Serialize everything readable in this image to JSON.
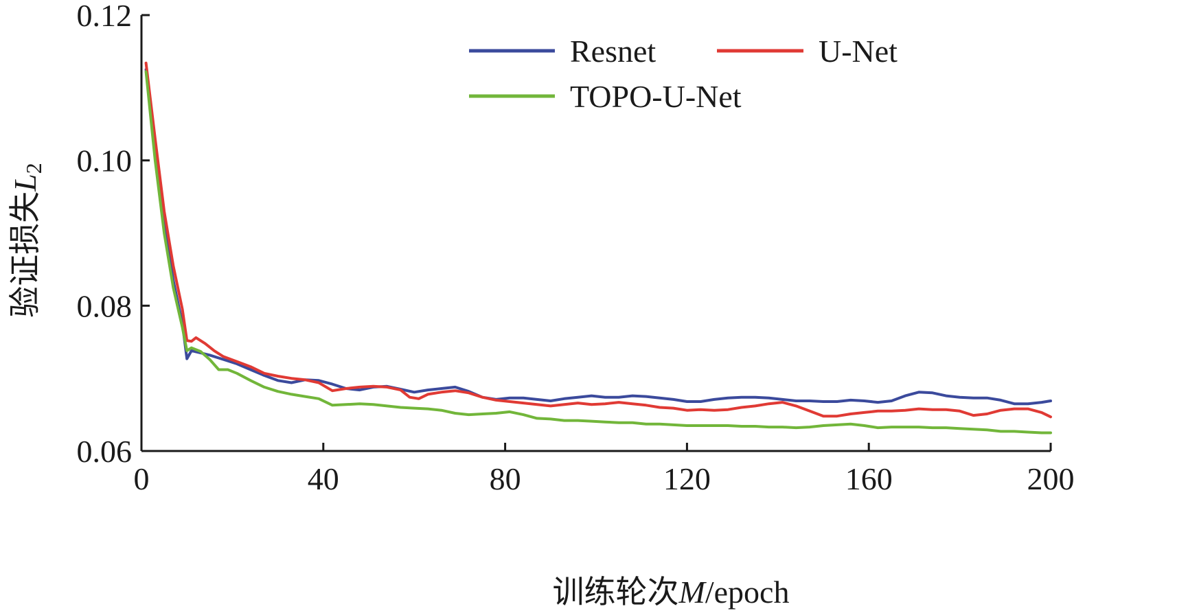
{
  "chart_data": {
    "type": "line",
    "title": "",
    "xlabel": {
      "prefix": "训练轮次",
      "var": "M",
      "suffix": "/epoch"
    },
    "ylabel": {
      "prefix": "验证损失",
      "var": "L",
      "sub": "2"
    },
    "xlim": [
      0,
      200
    ],
    "ylim": [
      0.06,
      0.12
    ],
    "xticks": [
      0,
      40,
      80,
      120,
      160,
      200
    ],
    "xtick_labels": [
      "0",
      "40",
      "80",
      "120",
      "160",
      "200"
    ],
    "yticks": [
      0.06,
      0.08,
      0.1,
      0.12
    ],
    "ytick_labels": [
      "0.06",
      "0.08",
      "0.10",
      "0.12"
    ],
    "grid": false,
    "legend_position": "top-right",
    "series": [
      {
        "name": "Resnet",
        "color": "#3b4a9c",
        "points": [
          [
            1,
            0.1125
          ],
          [
            3,
            0.101
          ],
          [
            5,
            0.091
          ],
          [
            7,
            0.0835
          ],
          [
            9,
            0.0775
          ],
          [
            10,
            0.0727
          ],
          [
            11,
            0.0738
          ],
          [
            13,
            0.0735
          ],
          [
            15,
            0.0732
          ],
          [
            18,
            0.0726
          ],
          [
            21,
            0.072
          ],
          [
            24,
            0.0712
          ],
          [
            27,
            0.0704
          ],
          [
            30,
            0.0697
          ],
          [
            33,
            0.0694
          ],
          [
            36,
            0.0698
          ],
          [
            39,
            0.0697
          ],
          [
            42,
            0.0692
          ],
          [
            45,
            0.0686
          ],
          [
            48,
            0.0684
          ],
          [
            51,
            0.0688
          ],
          [
            54,
            0.0689
          ],
          [
            57,
            0.0685
          ],
          [
            60,
            0.0681
          ],
          [
            63,
            0.0684
          ],
          [
            66,
            0.0686
          ],
          [
            69,
            0.0688
          ],
          [
            72,
            0.0682
          ],
          [
            75,
            0.0674
          ],
          [
            78,
            0.0671
          ],
          [
            81,
            0.0673
          ],
          [
            84,
            0.0673
          ],
          [
            87,
            0.0671
          ],
          [
            90,
            0.0669
          ],
          [
            93,
            0.0672
          ],
          [
            96,
            0.0674
          ],
          [
            99,
            0.0676
          ],
          [
            102,
            0.0674
          ],
          [
            105,
            0.0674
          ],
          [
            108,
            0.0676
          ],
          [
            111,
            0.0675
          ],
          [
            114,
            0.0673
          ],
          [
            117,
            0.0671
          ],
          [
            120,
            0.0668
          ],
          [
            123,
            0.0668
          ],
          [
            126,
            0.0671
          ],
          [
            129,
            0.0673
          ],
          [
            132,
            0.0674
          ],
          [
            135,
            0.0674
          ],
          [
            138,
            0.0673
          ],
          [
            141,
            0.0671
          ],
          [
            144,
            0.0669
          ],
          [
            147,
            0.0669
          ],
          [
            150,
            0.0668
          ],
          [
            153,
            0.0668
          ],
          [
            156,
            0.067
          ],
          [
            159,
            0.0669
          ],
          [
            162,
            0.0667
          ],
          [
            165,
            0.0669
          ],
          [
            168,
            0.0676
          ],
          [
            171,
            0.0681
          ],
          [
            174,
            0.068
          ],
          [
            177,
            0.0676
          ],
          [
            180,
            0.0674
          ],
          [
            183,
            0.0673
          ],
          [
            186,
            0.0673
          ],
          [
            189,
            0.067
          ],
          [
            192,
            0.0665
          ],
          [
            195,
            0.0665
          ],
          [
            198,
            0.0667
          ],
          [
            200,
            0.0669
          ]
        ]
      },
      {
        "name": "U-Net",
        "color": "#e03a34",
        "points": [
          [
            1,
            0.1134
          ],
          [
            3,
            0.103
          ],
          [
            5,
            0.093
          ],
          [
            7,
            0.0855
          ],
          [
            9,
            0.0795
          ],
          [
            10,
            0.0752
          ],
          [
            11,
            0.0751
          ],
          [
            12,
            0.0756
          ],
          [
            14,
            0.0748
          ],
          [
            16,
            0.0738
          ],
          [
            18,
            0.073
          ],
          [
            21,
            0.0723
          ],
          [
            24,
            0.0716
          ],
          [
            27,
            0.0707
          ],
          [
            30,
            0.0703
          ],
          [
            33,
            0.07
          ],
          [
            36,
            0.0698
          ],
          [
            39,
            0.0694
          ],
          [
            42,
            0.0683
          ],
          [
            45,
            0.0686
          ],
          [
            48,
            0.0688
          ],
          [
            51,
            0.0689
          ],
          [
            54,
            0.0688
          ],
          [
            57,
            0.0684
          ],
          [
            59,
            0.0674
          ],
          [
            61,
            0.0672
          ],
          [
            63,
            0.0678
          ],
          [
            66,
            0.0681
          ],
          [
            69,
            0.0683
          ],
          [
            72,
            0.068
          ],
          [
            75,
            0.0674
          ],
          [
            78,
            0.067
          ],
          [
            81,
            0.0668
          ],
          [
            84,
            0.0666
          ],
          [
            87,
            0.0664
          ],
          [
            90,
            0.0662
          ],
          [
            93,
            0.0664
          ],
          [
            96,
            0.0666
          ],
          [
            99,
            0.0664
          ],
          [
            102,
            0.0665
          ],
          [
            105,
            0.0667
          ],
          [
            108,
            0.0665
          ],
          [
            111,
            0.0663
          ],
          [
            114,
            0.066
          ],
          [
            117,
            0.0659
          ],
          [
            120,
            0.0656
          ],
          [
            123,
            0.0657
          ],
          [
            126,
            0.0656
          ],
          [
            129,
            0.0657
          ],
          [
            132,
            0.066
          ],
          [
            135,
            0.0662
          ],
          [
            138,
            0.0665
          ],
          [
            141,
            0.0667
          ],
          [
            144,
            0.0662
          ],
          [
            147,
            0.0655
          ],
          [
            150,
            0.0648
          ],
          [
            153,
            0.0648
          ],
          [
            156,
            0.0651
          ],
          [
            159,
            0.0653
          ],
          [
            162,
            0.0655
          ],
          [
            165,
            0.0655
          ],
          [
            168,
            0.0656
          ],
          [
            171,
            0.0658
          ],
          [
            174,
            0.0657
          ],
          [
            177,
            0.0657
          ],
          [
            180,
            0.0655
          ],
          [
            183,
            0.0649
          ],
          [
            186,
            0.0651
          ],
          [
            189,
            0.0656
          ],
          [
            192,
            0.0658
          ],
          [
            195,
            0.0658
          ],
          [
            198,
            0.0653
          ],
          [
            200,
            0.0647
          ]
        ]
      },
      {
        "name": "TOPO-U-Net",
        "color": "#72b63a",
        "points": [
          [
            1,
            0.1122
          ],
          [
            3,
            0.1
          ],
          [
            5,
            0.09
          ],
          [
            7,
            0.0825
          ],
          [
            9,
            0.077
          ],
          [
            10,
            0.0738
          ],
          [
            11,
            0.0742
          ],
          [
            13,
            0.0737
          ],
          [
            15,
            0.0726
          ],
          [
            17,
            0.0712
          ],
          [
            19,
            0.0712
          ],
          [
            21,
            0.0707
          ],
          [
            24,
            0.0697
          ],
          [
            27,
            0.0688
          ],
          [
            30,
            0.0682
          ],
          [
            33,
            0.0678
          ],
          [
            36,
            0.0675
          ],
          [
            39,
            0.0672
          ],
          [
            42,
            0.0663
          ],
          [
            45,
            0.0664
          ],
          [
            48,
            0.0665
          ],
          [
            51,
            0.0664
          ],
          [
            54,
            0.0662
          ],
          [
            57,
            0.066
          ],
          [
            60,
            0.0659
          ],
          [
            63,
            0.0658
          ],
          [
            66,
            0.0656
          ],
          [
            69,
            0.0652
          ],
          [
            72,
            0.065
          ],
          [
            75,
            0.0651
          ],
          [
            78,
            0.0652
          ],
          [
            81,
            0.0654
          ],
          [
            84,
            0.065
          ],
          [
            87,
            0.0645
          ],
          [
            90,
            0.0644
          ],
          [
            93,
            0.0642
          ],
          [
            96,
            0.0642
          ],
          [
            99,
            0.0641
          ],
          [
            102,
            0.064
          ],
          [
            105,
            0.0639
          ],
          [
            108,
            0.0639
          ],
          [
            111,
            0.0637
          ],
          [
            114,
            0.0637
          ],
          [
            117,
            0.0636
          ],
          [
            120,
            0.0635
          ],
          [
            123,
            0.0635
          ],
          [
            126,
            0.0635
          ],
          [
            129,
            0.0635
          ],
          [
            132,
            0.0634
          ],
          [
            135,
            0.0634
          ],
          [
            138,
            0.0633
          ],
          [
            141,
            0.0633
          ],
          [
            144,
            0.0632
          ],
          [
            147,
            0.0633
          ],
          [
            150,
            0.0635
          ],
          [
            153,
            0.0636
          ],
          [
            156,
            0.0637
          ],
          [
            159,
            0.0635
          ],
          [
            162,
            0.0632
          ],
          [
            165,
            0.0633
          ],
          [
            168,
            0.0633
          ],
          [
            171,
            0.0633
          ],
          [
            174,
            0.0632
          ],
          [
            177,
            0.0632
          ],
          [
            180,
            0.0631
          ],
          [
            183,
            0.063
          ],
          [
            186,
            0.0629
          ],
          [
            189,
            0.0627
          ],
          [
            192,
            0.0627
          ],
          [
            195,
            0.0626
          ],
          [
            198,
            0.0625
          ],
          [
            200,
            0.0625
          ]
        ]
      }
    ]
  }
}
